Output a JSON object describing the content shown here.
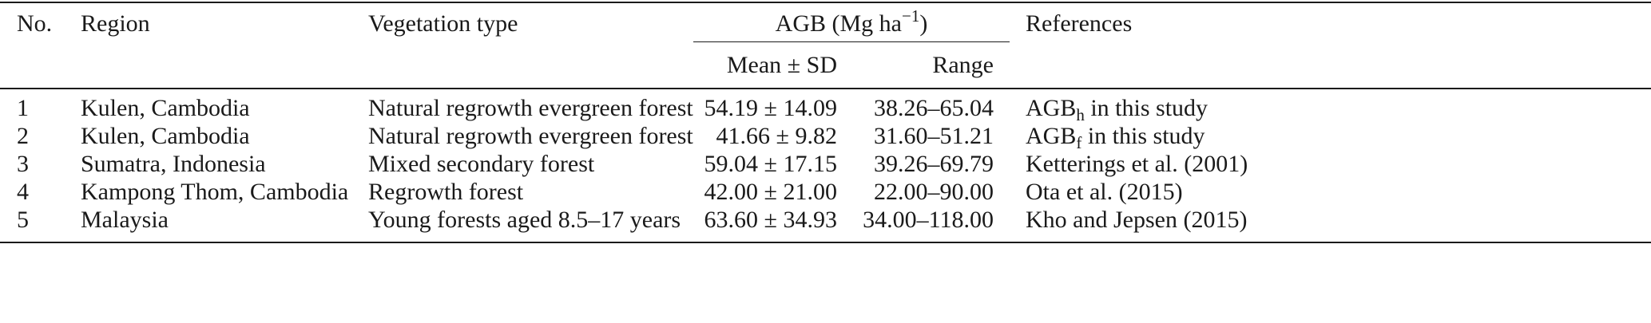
{
  "table": {
    "headers": {
      "no": "No.",
      "region": "Region",
      "vegetation": "Vegetation type",
      "agb_prefix": "AGB (Mg ha",
      "agb_exponent": "−1",
      "agb_suffix": ")",
      "mean_sd": "Mean ± SD",
      "range": "Range",
      "references": "References"
    },
    "rows": [
      {
        "no": "1",
        "region": "Kulen, Cambodia",
        "vegetation": "Natural regrowth evergreen forest",
        "mean_sd": "54.19 ± 14.09",
        "range": "38.26–65.04",
        "ref_main": "AGB",
        "ref_sub": "h",
        "ref_rest": " in this study"
      },
      {
        "no": "2",
        "region": "Kulen, Cambodia",
        "vegetation": "Natural regrowth evergreen forest",
        "mean_sd": "41.66 ± 9.82",
        "range": "31.60–51.21",
        "ref_main": "AGB",
        "ref_sub": "f",
        "ref_rest": " in this study"
      },
      {
        "no": "3",
        "region": "Sumatra, Indonesia",
        "vegetation": "Mixed secondary forest",
        "mean_sd": "59.04 ± 17.15",
        "range": "39.26–69.79",
        "ref_main": "Ketterings et al. (2001)",
        "ref_sub": "",
        "ref_rest": ""
      },
      {
        "no": "4",
        "region": "Kampong Thom, Cambodia",
        "vegetation": "Regrowth forest",
        "mean_sd": "42.00 ± 21.00",
        "range": "22.00–90.00",
        "ref_main": "Ota et al. (2015)",
        "ref_sub": "",
        "ref_rest": ""
      },
      {
        "no": "5",
        "region": "Malaysia",
        "vegetation": "Young forests aged 8.5–17 years",
        "mean_sd": "63.60 ± 34.93",
        "range": "34.00–118.00",
        "ref_main": "Kho and Jepsen (2015)",
        "ref_sub": "",
        "ref_rest": ""
      }
    ]
  }
}
